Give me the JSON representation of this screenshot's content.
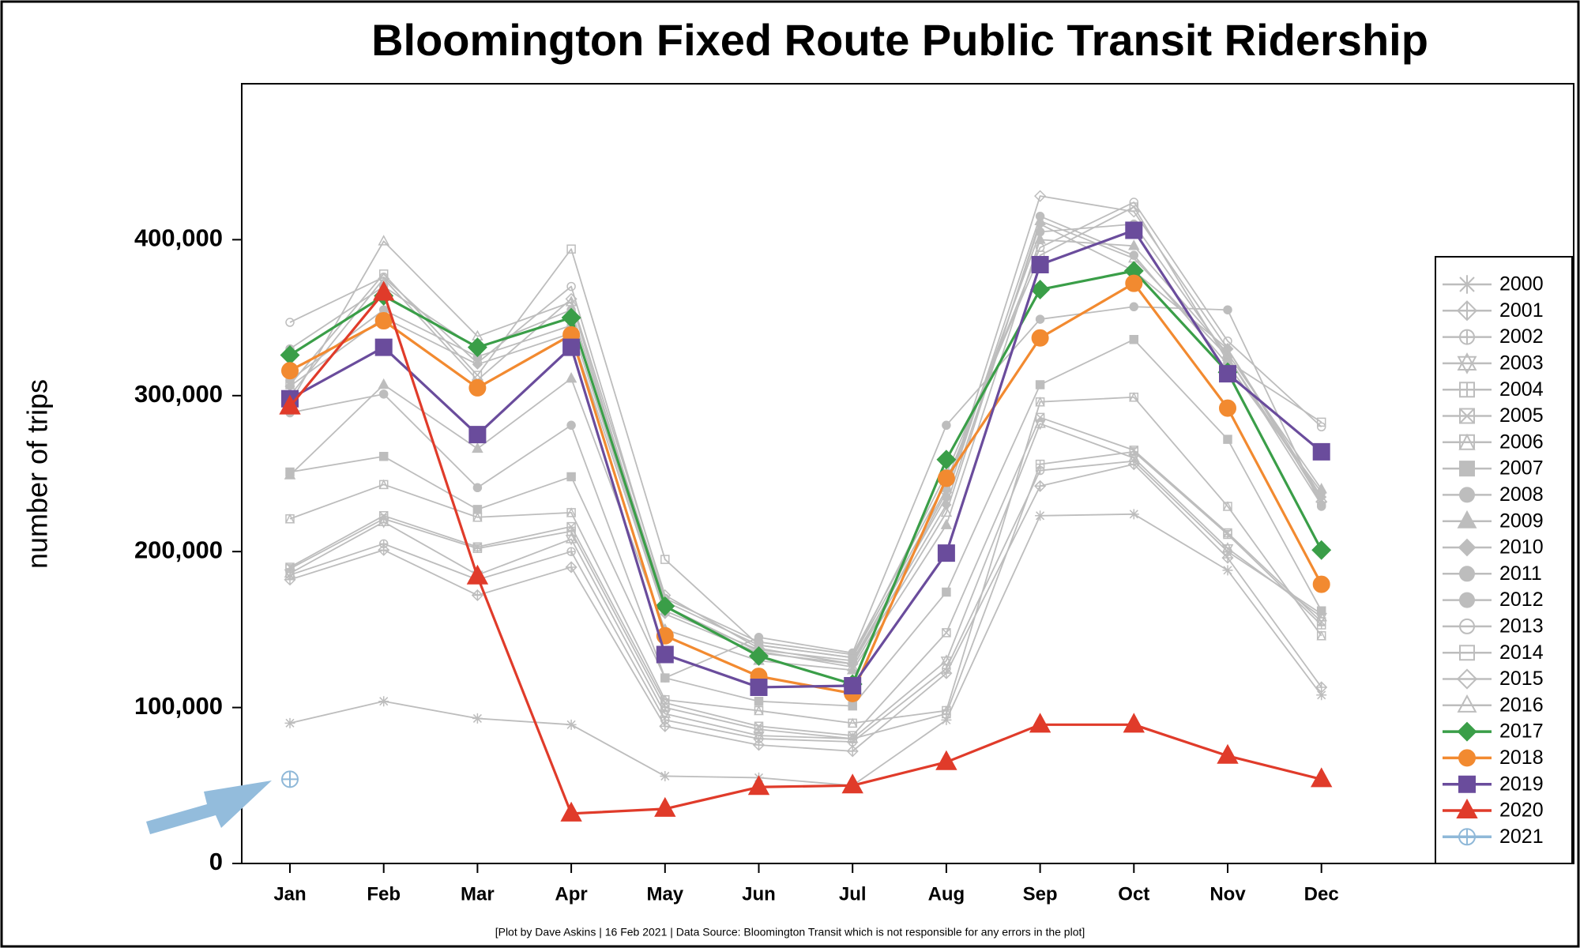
{
  "chart_data": {
    "type": "line",
    "title": "Bloomington Fixed Route Public Transit Ridership",
    "y_label": "number of trips",
    "footnote": "[Plot by Dave Askins | 16 Feb 2021 | Data Source: Bloomington Transit which is not responsible for any errors in the plot]",
    "categories": [
      "Jan",
      "Feb",
      "Mar",
      "Apr",
      "May",
      "Jun",
      "Jul",
      "Aug",
      "Sep",
      "Oct",
      "Nov",
      "Dec"
    ],
    "ylim": [
      0,
      500000
    ],
    "yticks": [
      0,
      {
        "value": 100000,
        "label": "100,000"
      },
      {
        "value": 200000,
        "label": "200,000"
      },
      {
        "value": 300000,
        "label": "300,000"
      },
      {
        "value": 400000,
        "label": "400,000"
      }
    ],
    "legend": "right",
    "series": [
      {
        "name": "2000",
        "color": "#bdbdbd",
        "marker": "asterisk",
        "values": [
          90000,
          104000,
          93000,
          89000,
          56000,
          55000,
          50000,
          92000,
          223000,
          224000,
          188000,
          108000
        ]
      },
      {
        "name": "2001",
        "color": "#bdbdbd",
        "marker": "diamond-plus",
        "values": [
          182000,
          201000,
          172000,
          190000,
          88000,
          76000,
          72000,
          122000,
          242000,
          256000,
          196000,
          113000
        ]
      },
      {
        "name": "2002",
        "color": "#bdbdbd",
        "marker": "circle-plus",
        "values": [
          185000,
          205000,
          182000,
          200000,
          92000,
          80000,
          78000,
          125000,
          252000,
          258000,
          200000,
          160000
        ]
      },
      {
        "name": "2003",
        "color": "#bdbdbd",
        "marker": "star",
        "values": [
          186000,
          219000,
          185000,
          208000,
          96000,
          82000,
          80000,
          130000,
          282000,
          260000,
          202000,
          158000
        ]
      },
      {
        "name": "2004",
        "color": "#bdbdbd",
        "marker": "square-plus",
        "values": [
          189000,
          221000,
          202000,
          213000,
          100000,
          86000,
          80000,
          96000,
          256000,
          264000,
          211000,
          153000
        ]
      },
      {
        "name": "2005",
        "color": "#bdbdbd",
        "marker": "square-x",
        "values": [
          190000,
          223000,
          203000,
          216000,
          103000,
          88000,
          82000,
          148000,
          286000,
          265000,
          212000,
          155000
        ]
      },
      {
        "name": "2006",
        "color": "#bdbdbd",
        "marker": "square-triangle",
        "values": [
          221000,
          243000,
          222000,
          225000,
          105000,
          98000,
          90000,
          98000,
          296000,
          299000,
          229000,
          146000
        ]
      },
      {
        "name": "2007",
        "color": "#bdbdbd",
        "marker": "square-filled",
        "values": [
          251000,
          261000,
          227000,
          248000,
          119000,
          104000,
          101000,
          174000,
          307000,
          336000,
          272000,
          162000
        ]
      },
      {
        "name": "2008",
        "color": "#bdbdbd",
        "marker": "circle-filled",
        "values": [
          289000,
          301000,
          241000,
          281000,
          119000,
          145000,
          135000,
          281000,
          349000,
          357000,
          355000,
          229000
        ]
      },
      {
        "name": "2009",
        "color": "#bdbdbd",
        "marker": "triangle-filled",
        "values": [
          249000,
          307000,
          266000,
          311000,
          150000,
          130000,
          124000,
          217000,
          400000,
          396000,
          327000,
          240000
        ]
      },
      {
        "name": "2010",
        "color": "#bdbdbd",
        "marker": "diamond-filled",
        "values": [
          306000,
          350000,
          320000,
          340000,
          160000,
          135000,
          128000,
          230000,
          410000,
          380000,
          330000,
          235000
        ]
      },
      {
        "name": "2011",
        "color": "#bdbdbd",
        "marker": "circle-filled",
        "values": [
          310000,
          355000,
          325000,
          345000,
          162000,
          137000,
          130000,
          235000,
          415000,
          390000,
          320000,
          238000
        ]
      },
      {
        "name": "2012",
        "color": "#bdbdbd",
        "marker": "circle-filled",
        "values": [
          330000,
          370000,
          330000,
          355000,
          168000,
          140000,
          132000,
          240000,
          405000,
          410000,
          325000,
          230000
        ]
      },
      {
        "name": "2013",
        "color": "#bdbdbd",
        "marker": "circle-open",
        "values": [
          347000,
          376000,
          321000,
          370000,
          170000,
          142000,
          134000,
          245000,
          395000,
          424000,
          335000,
          280000
        ]
      },
      {
        "name": "2014",
        "color": "#bdbdbd",
        "marker": "square-open",
        "values": [
          307000,
          378000,
          313000,
          394000,
          195000,
          140000,
          132000,
          250000,
          390000,
          421000,
          322000,
          283000
        ]
      },
      {
        "name": "2015",
        "color": "#bdbdbd",
        "marker": "diamond-open",
        "values": [
          300000,
          375000,
          310000,
          362000,
          172000,
          138000,
          128000,
          238000,
          428000,
          418000,
          330000,
          232000
        ]
      },
      {
        "name": "2016",
        "color": "#bdbdbd",
        "marker": "triangle-open",
        "values": [
          295000,
          399000,
          338000,
          360000,
          165000,
          136000,
          126000,
          225000,
          412000,
          388000,
          325000,
          234000
        ]
      },
      {
        "name": "2017",
        "color": "#3a9e48",
        "marker": "diamond-filled",
        "values": [
          326000,
          364000,
          331000,
          350000,
          165000,
          133000,
          115000,
          259000,
          368000,
          380000,
          315000,
          201000
        ]
      },
      {
        "name": "2018",
        "color": "#f28a30",
        "marker": "circle-filled",
        "values": [
          316000,
          348000,
          305000,
          339000,
          146000,
          120000,
          109000,
          247000,
          337000,
          372000,
          292000,
          179000
        ]
      },
      {
        "name": "2019",
        "color": "#6a4c9c",
        "marker": "square-filled",
        "values": [
          298000,
          331000,
          275000,
          331000,
          134000,
          113000,
          114000,
          199000,
          384000,
          406000,
          314000,
          264000
        ]
      },
      {
        "name": "2020",
        "color": "#e03b2a",
        "marker": "triangle-filled",
        "values": [
          293000,
          366000,
          184000,
          32000,
          35000,
          49000,
          50000,
          65000,
          89000,
          89000,
          69000,
          54000
        ]
      },
      {
        "name": "2021",
        "color": "#8fb8d8",
        "marker": "circle-plus",
        "values": [
          54000,
          null,
          null,
          null,
          null,
          null,
          null,
          null,
          null,
          null,
          null,
          null
        ]
      }
    ]
  }
}
